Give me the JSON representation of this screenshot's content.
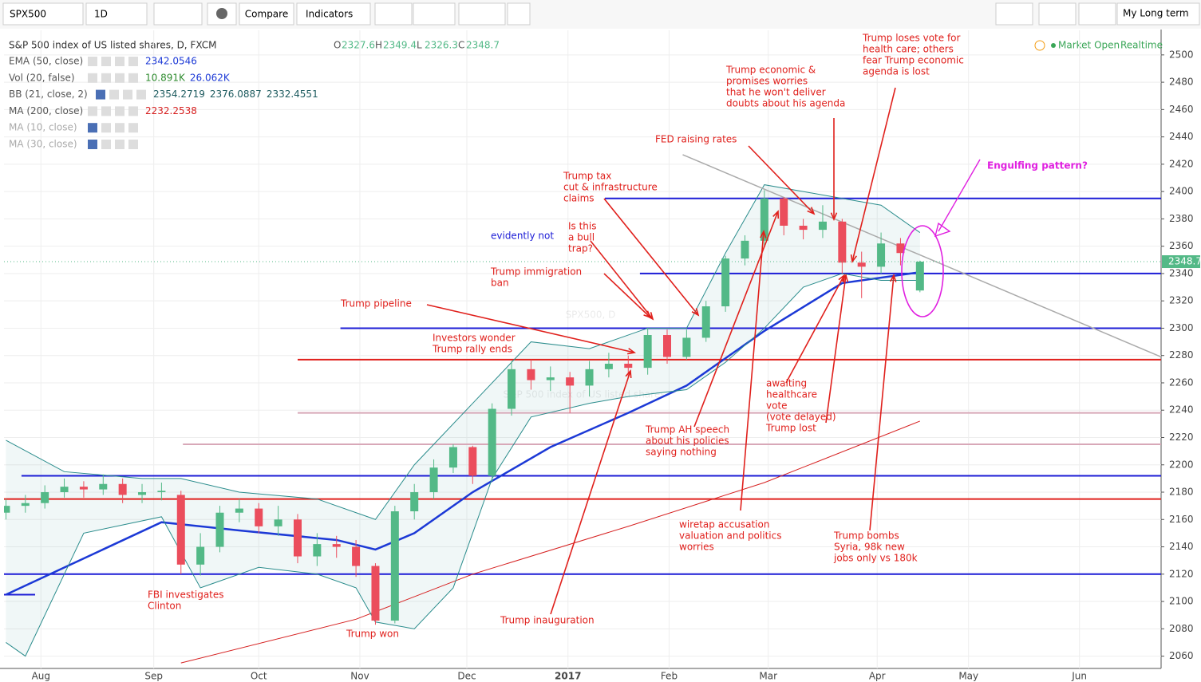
{
  "toolbar": {
    "symbol": "SPX500",
    "interval": "1D",
    "compare": "Compare",
    "indicators": "Indicators",
    "layout": "My Long term"
  },
  "status": {
    "market": "Market Open",
    "feed": "Realtime"
  },
  "chart_data": {
    "type": "candlestick",
    "title": "S&P 500 index of US listed shares, D, FXCM",
    "watermark": [
      "SPX500, D",
      "S&P 500 index of US listed shares"
    ],
    "ohlc_labels": [
      "O",
      "H",
      "L",
      "C"
    ],
    "up_color": "#53b987",
    "down_color": "#eb4d5c",
    "open": [
      2165,
      2170,
      2172,
      2180,
      2184,
      2182,
      2186,
      2178,
      2180,
      2178,
      2127,
      2140,
      2165,
      2168,
      2155,
      2160,
      2133,
      2142,
      2140,
      2126,
      2086,
      2166,
      2180,
      2198,
      2213,
      2192,
      2241,
      2270,
      2262,
      2264,
      2258,
      2270,
      2274,
      2271,
      2295,
      2279,
      2293,
      2316,
      2351,
      2364,
      2395,
      2375,
      2372,
      2378,
      2348,
      2345,
      2362,
      2327.6
    ],
    "high": [
      2175,
      2178,
      2185,
      2190,
      2188,
      2193,
      2190,
      2186,
      2187,
      2181,
      2150,
      2170,
      2175,
      2172,
      2170,
      2164,
      2150,
      2148,
      2145,
      2128,
      2170,
      2186,
      2204,
      2215,
      2214,
      2245,
      2276,
      2277,
      2272,
      2268,
      2276,
      2282,
      2280,
      2300,
      2299,
      2299,
      2320,
      2353,
      2368,
      2401,
      2396,
      2380,
      2390,
      2380,
      2356,
      2370,
      2366,
      2349.4
    ],
    "low": [
      2160,
      2165,
      2168,
      2176,
      2176,
      2178,
      2172,
      2172,
      2174,
      2120,
      2119,
      2136,
      2158,
      2150,
      2148,
      2128,
      2126,
      2132,
      2118,
      2083,
      2084,
      2160,
      2175,
      2194,
      2186,
      2188,
      2236,
      2255,
      2254,
      2238,
      2250,
      2264,
      2264,
      2266,
      2274,
      2277,
      2290,
      2312,
      2346,
      2360,
      2368,
      2365,
      2366,
      2340,
      2322,
      2340,
      2346,
      2326.3
    ],
    "close": [
      2170,
      2172,
      2180,
      2184,
      2182,
      2186,
      2178,
      2180,
      2181,
      2127,
      2140,
      2165,
      2168,
      2155,
      2160,
      2133,
      2142,
      2140,
      2126,
      2086,
      2166,
      2180,
      2198,
      2213,
      2192,
      2241,
      2270,
      2262,
      2264,
      2258,
      2270,
      2274,
      2271,
      2295,
      2279,
      2293,
      2316,
      2351,
      2364,
      2395,
      2375,
      2372,
      2378,
      2348,
      2345,
      2362,
      2355,
      2348.7
    ],
    "xlim": [
      -0.1,
      59.4
    ],
    "xticks": [
      {
        "value": 1.8,
        "label": "Aug"
      },
      {
        "value": 7.6,
        "label": "Sep"
      },
      {
        "value": 13.0,
        "label": "Oct"
      },
      {
        "value": 18.2,
        "label": "Nov"
      },
      {
        "value": 23.7,
        "label": "Dec"
      },
      {
        "value": 28.9,
        "label": "2017"
      },
      {
        "value": 34.1,
        "label": "Feb"
      },
      {
        "value": 39.2,
        "label": "Mar"
      },
      {
        "value": 44.8,
        "label": "Apr"
      },
      {
        "value": 49.5,
        "label": "May"
      },
      {
        "value": 55.2,
        "label": "Jun"
      }
    ],
    "ylim": [
      2051,
      2518
    ],
    "yticks": [
      2060,
      2080,
      2100,
      2120,
      2140,
      2160,
      2180,
      2200,
      2220,
      2240,
      2260,
      2280,
      2300,
      2320,
      2340,
      2360,
      2380,
      2400,
      2420,
      2440,
      2460,
      2480,
      2500
    ],
    "grid": true,
    "indicators": [
      {
        "name": "EMA (50, close)",
        "values": [
          2342.0546
        ],
        "colors": [
          "#1c39d6"
        ]
      },
      {
        "name": "Vol (20, false)",
        "values": [
          10891,
          26062
        ],
        "value_labels": [
          "10.891K",
          "26.062K"
        ],
        "colors": [
          "#2e8b2e",
          "#1c39d6"
        ]
      },
      {
        "name": "BB (21, close, 2)",
        "values": [
          2354.2719,
          2376.0887,
          2332.4551
        ],
        "colors": [
          "#1c5a5e",
          "#1c5a5e",
          "#1c5a5e"
        ]
      },
      {
        "name": "MA (200, close)",
        "values": [
          2232.2538
        ],
        "colors": [
          "#d62020"
        ]
      },
      {
        "name": "MA (10, close)",
        "values": [],
        "colors": []
      },
      {
        "name": "MA (30, close)",
        "values": [],
        "colors": []
      }
    ],
    "lines": [
      {
        "color": "#1c39d6",
        "width": 2.5,
        "x": [
          0,
          8,
          12,
          17,
          19,
          21,
          24,
          28,
          32,
          35,
          39,
          43,
          47
        ],
        "values": [
          2105,
          2158,
          2152,
          2145,
          2138,
          2150,
          2180,
          2213,
          2238,
          2258,
          2298,
          2333,
          2341
        ]
      },
      {
        "color": "#d62020",
        "width": 1,
        "x": [
          9,
          18,
          24,
          32,
          39,
          47
        ],
        "values": [
          2055,
          2087,
          2120,
          2155,
          2187,
          2232
        ]
      },
      {
        "color": "#2a8c8c",
        "width": 1,
        "x": [
          0,
          3,
          7,
          9,
          12,
          16,
          19,
          21,
          24,
          27,
          30,
          33,
          35,
          37,
          39,
          41,
          43,
          45,
          47
        ],
        "values": [
          2218,
          2195,
          2190,
          2190,
          2180,
          2175,
          2160,
          2200,
          2245,
          2290,
          2285,
          2300,
          2300,
          2355,
          2405,
          2400,
          2395,
          2390,
          2370
        ]
      },
      {
        "color": "#2a8c8c",
        "width": 1,
        "x": [
          0,
          1,
          4,
          8,
          10,
          13,
          16,
          18,
          19,
          21,
          23,
          25,
          27,
          30,
          32,
          35,
          37,
          39,
          41,
          43,
          45,
          47
        ],
        "values": [
          2070,
          2060,
          2150,
          2162,
          2110,
          2125,
          2120,
          2110,
          2085,
          2080,
          2110,
          2190,
          2235,
          2245,
          2250,
          2255,
          2275,
          2300,
          2330,
          2340,
          2335,
          2335
        ]
      }
    ],
    "levels": [
      {
        "price": 2395,
        "from": 30.8,
        "color": "#1c1cd6"
      },
      {
        "price": 2340,
        "from": 32.6,
        "color": "#1c1cd6"
      },
      {
        "price": 2300,
        "from": 17.2,
        "color": "#1c1cd6"
      },
      {
        "price": 2277,
        "from": 15.0,
        "color": "#e0201c"
      },
      {
        "price": 2238,
        "from": 15.0,
        "color": "#d8a8b8"
      },
      {
        "price": 2215,
        "from": 9.1,
        "color": "#d8a8b8"
      },
      {
        "price": 2192,
        "from": 0.8,
        "color": "#1c1cd6"
      },
      {
        "price": 2175,
        "from": -0.1,
        "color": "#e0201c"
      },
      {
        "price": 2120,
        "from": -0.1,
        "color": "#1c1cd6"
      },
      {
        "price": 2105,
        "from": -0.1,
        "to": 1.5,
        "color": "#1c1cd6"
      }
    ],
    "trend": {
      "x": [
        34.8,
        59.4
      ],
      "values": [
        2427,
        2279
      ],
      "color": "#aaaaaa"
    },
    "annotations": [
      {
        "lines": [
          "Trump loses vote for",
          "health care; others",
          "fear Trump economic",
          "agenda is lost"
        ],
        "color": "#e0201c"
      },
      {
        "lines": [
          "Trump economic &",
          "promises worries",
          "that he won't deliver",
          "doubts about his agenda"
        ],
        "color": "#e0201c"
      },
      {
        "lines": [
          "FED raising rates"
        ],
        "color": "#e0201c"
      },
      {
        "lines": [
          "Engulfing pattern?"
        ],
        "color": "#e020e0"
      },
      {
        "lines": [
          "Trump tax",
          "cut & infrastructure",
          "claims"
        ],
        "color": "#e0201c"
      },
      {
        "lines": [
          "Is this",
          "a bull",
          "trap?"
        ],
        "color": "#e0201c"
      },
      {
        "lines": [
          "evidently not"
        ],
        "color": "#1c1cd6"
      },
      {
        "lines": [
          "Trump immigration",
          "ban"
        ],
        "color": "#e0201c"
      },
      {
        "lines": [
          "Trump pipeline"
        ],
        "color": "#e0201c"
      },
      {
        "lines": [
          "Investors wonder",
          "Trump rally ends"
        ],
        "color": "#e0201c"
      },
      {
        "lines": [
          "awaiting",
          "healthcare",
          "vote",
          "(vote delayed)",
          "Trump lost"
        ],
        "color": "#e0201c"
      },
      {
        "lines": [
          "Trump AH speech",
          "about his policies",
          "saying nothing"
        ],
        "color": "#e0201c"
      },
      {
        "lines": [
          "wiretap accusation",
          "valuation and politics",
          "worries"
        ],
        "color": "#e0201c"
      },
      {
        "lines": [
          "Trump bombs",
          "Syria, 98k new",
          "jobs only vs 180k"
        ],
        "color": "#e0201c"
      },
      {
        "lines": [
          "FBI investigates",
          "Clinton"
        ],
        "color": "#e0201c"
      },
      {
        "lines": [
          "Trump inauguration"
        ],
        "color": "#e0201c"
      },
      {
        "lines": [
          "Trump won"
        ],
        "color": "#e0201c"
      }
    ]
  }
}
